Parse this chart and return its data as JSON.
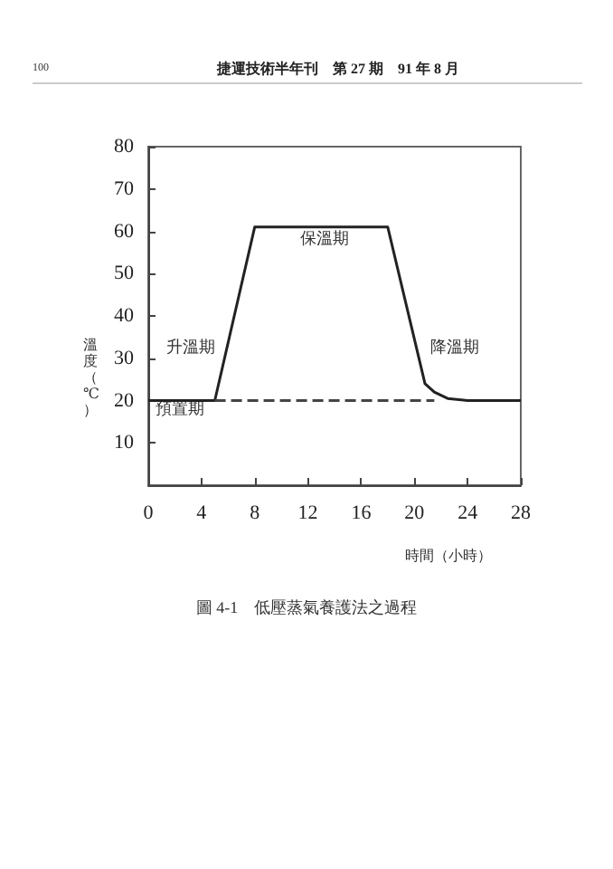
{
  "chart_data": {
    "type": "line",
    "title": "圖 4-1　低壓蒸氣養護法之過程",
    "xlabel": "時間（小時）",
    "ylabel": "溫度（℃）",
    "xlim": [
      0,
      28
    ],
    "xticks": [
      0,
      4,
      8,
      12,
      16,
      20,
      24,
      28
    ],
    "ylim": [
      0,
      80
    ],
    "yticks": [
      10,
      20,
      30,
      40,
      50,
      60,
      70,
      80
    ],
    "series": [
      {
        "color": "#222222",
        "line_style": "solid",
        "x": [
          0,
          5,
          8,
          18,
          20.8,
          21.5,
          22.5,
          24,
          28
        ],
        "values": [
          20,
          20,
          61,
          61,
          24,
          22,
          20.5,
          20,
          20
        ]
      },
      {
        "color": "#444444",
        "line_style": "dashed",
        "x": [
          5,
          21.5
        ],
        "values": [
          20,
          20
        ]
      }
    ],
    "annotations": [
      "100",
      "捷運技術半年刊　第 27 期　91 年 8 月",
      "預置期",
      "升溫期",
      "保溫期",
      "降溫期"
    ],
    "grid": false,
    "marker": "none"
  }
}
